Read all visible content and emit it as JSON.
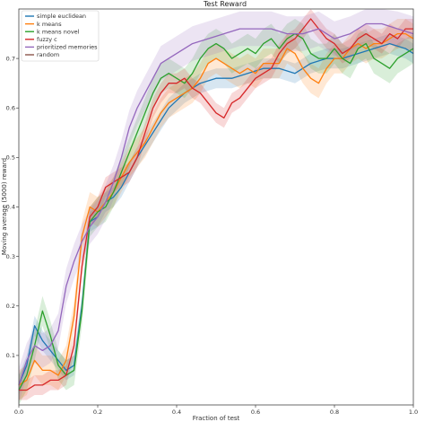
{
  "chart_data": {
    "type": "line",
    "title": "Test Reward",
    "xlabel": "Fraction of test",
    "ylabel": "Moving average (5000) reward",
    "xlim": [
      0.0,
      1.0
    ],
    "ylim": [
      0.0,
      0.8
    ],
    "xticks": [
      "0.0",
      "0.2",
      "0.4",
      "0.6",
      "0.8",
      "1.0"
    ],
    "yticks": [
      "0.1",
      "0.2",
      "0.3",
      "0.4",
      "0.5",
      "0.6",
      "0.7"
    ],
    "legend_position": "top-left",
    "grid": false,
    "series": [
      {
        "name": "simple euclidean",
        "color": "#1f77b4",
        "band": 0.02,
        "points": [
          [
            0.0,
            0.04
          ],
          [
            0.02,
            0.08
          ],
          [
            0.04,
            0.16
          ],
          [
            0.06,
            0.13
          ],
          [
            0.08,
            0.11
          ],
          [
            0.1,
            0.09
          ],
          [
            0.12,
            0.07
          ],
          [
            0.14,
            0.08
          ],
          [
            0.16,
            0.2
          ],
          [
            0.18,
            0.37
          ],
          [
            0.2,
            0.38
          ],
          [
            0.22,
            0.41
          ],
          [
            0.24,
            0.42
          ],
          [
            0.26,
            0.44
          ],
          [
            0.28,
            0.47
          ],
          [
            0.3,
            0.5
          ],
          [
            0.34,
            0.55
          ],
          [
            0.38,
            0.6
          ],
          [
            0.42,
            0.63
          ],
          [
            0.46,
            0.65
          ],
          [
            0.5,
            0.66
          ],
          [
            0.54,
            0.66
          ],
          [
            0.58,
            0.67
          ],
          [
            0.62,
            0.68
          ],
          [
            0.66,
            0.68
          ],
          [
            0.7,
            0.67
          ],
          [
            0.74,
            0.69
          ],
          [
            0.78,
            0.7
          ],
          [
            0.82,
            0.7
          ],
          [
            0.86,
            0.71
          ],
          [
            0.9,
            0.72
          ],
          [
            0.94,
            0.73
          ],
          [
            0.98,
            0.72
          ],
          [
            1.0,
            0.71
          ]
        ]
      },
      {
        "name": "k means",
        "color": "#ff7f0e",
        "band": 0.03,
        "points": [
          [
            0.0,
            0.04
          ],
          [
            0.02,
            0.05
          ],
          [
            0.04,
            0.09
          ],
          [
            0.06,
            0.07
          ],
          [
            0.08,
            0.07
          ],
          [
            0.1,
            0.06
          ],
          [
            0.12,
            0.09
          ],
          [
            0.14,
            0.18
          ],
          [
            0.16,
            0.34
          ],
          [
            0.18,
            0.4
          ],
          [
            0.2,
            0.39
          ],
          [
            0.22,
            0.41
          ],
          [
            0.24,
            0.43
          ],
          [
            0.26,
            0.46
          ],
          [
            0.28,
            0.49
          ],
          [
            0.3,
            0.51
          ],
          [
            0.32,
            0.53
          ],
          [
            0.34,
            0.56
          ],
          [
            0.36,
            0.59
          ],
          [
            0.38,
            0.61
          ],
          [
            0.4,
            0.62
          ],
          [
            0.42,
            0.63
          ],
          [
            0.44,
            0.64
          ],
          [
            0.46,
            0.66
          ],
          [
            0.48,
            0.69
          ],
          [
            0.5,
            0.7
          ],
          [
            0.52,
            0.69
          ],
          [
            0.54,
            0.68
          ],
          [
            0.56,
            0.67
          ],
          [
            0.58,
            0.68
          ],
          [
            0.6,
            0.67
          ],
          [
            0.62,
            0.69
          ],
          [
            0.64,
            0.69
          ],
          [
            0.66,
            0.69
          ],
          [
            0.68,
            0.72
          ],
          [
            0.7,
            0.71
          ],
          [
            0.72,
            0.68
          ],
          [
            0.74,
            0.66
          ],
          [
            0.76,
            0.65
          ],
          [
            0.78,
            0.68
          ],
          [
            0.8,
            0.7
          ],
          [
            0.82,
            0.7
          ],
          [
            0.84,
            0.72
          ],
          [
            0.86,
            0.73
          ],
          [
            0.88,
            0.72
          ],
          [
            0.9,
            0.73
          ],
          [
            0.92,
            0.73
          ],
          [
            0.94,
            0.74
          ],
          [
            0.96,
            0.75
          ],
          [
            0.98,
            0.75
          ],
          [
            1.0,
            0.74
          ]
        ]
      },
      {
        "name": "k means novel",
        "color": "#2ca02c",
        "band": 0.03,
        "points": [
          [
            0.0,
            0.03
          ],
          [
            0.02,
            0.06
          ],
          [
            0.04,
            0.12
          ],
          [
            0.06,
            0.19
          ],
          [
            0.08,
            0.14
          ],
          [
            0.1,
            0.08
          ],
          [
            0.12,
            0.06
          ],
          [
            0.14,
            0.07
          ],
          [
            0.16,
            0.19
          ],
          [
            0.18,
            0.37
          ],
          [
            0.2,
            0.39
          ],
          [
            0.22,
            0.4
          ],
          [
            0.24,
            0.43
          ],
          [
            0.26,
            0.47
          ],
          [
            0.28,
            0.51
          ],
          [
            0.3,
            0.55
          ],
          [
            0.32,
            0.59
          ],
          [
            0.34,
            0.63
          ],
          [
            0.36,
            0.66
          ],
          [
            0.38,
            0.67
          ],
          [
            0.4,
            0.66
          ],
          [
            0.42,
            0.65
          ],
          [
            0.44,
            0.67
          ],
          [
            0.46,
            0.7
          ],
          [
            0.48,
            0.72
          ],
          [
            0.5,
            0.73
          ],
          [
            0.52,
            0.72
          ],
          [
            0.54,
            0.7
          ],
          [
            0.56,
            0.71
          ],
          [
            0.58,
            0.72
          ],
          [
            0.6,
            0.71
          ],
          [
            0.62,
            0.73
          ],
          [
            0.64,
            0.74
          ],
          [
            0.66,
            0.72
          ],
          [
            0.68,
            0.74
          ],
          [
            0.7,
            0.75
          ],
          [
            0.72,
            0.74
          ],
          [
            0.74,
            0.71
          ],
          [
            0.76,
            0.7
          ],
          [
            0.78,
            0.7
          ],
          [
            0.8,
            0.72
          ],
          [
            0.82,
            0.7
          ],
          [
            0.84,
            0.69
          ],
          [
            0.86,
            0.72
          ],
          [
            0.88,
            0.73
          ],
          [
            0.9,
            0.7
          ],
          [
            0.92,
            0.69
          ],
          [
            0.94,
            0.68
          ],
          [
            0.96,
            0.7
          ],
          [
            0.98,
            0.71
          ],
          [
            1.0,
            0.72
          ]
        ]
      },
      {
        "name": "fuzzy c",
        "color": "#d62728",
        "band": 0.02,
        "points": [
          [
            0.0,
            0.03
          ],
          [
            0.02,
            0.03
          ],
          [
            0.04,
            0.04
          ],
          [
            0.06,
            0.04
          ],
          [
            0.08,
            0.05
          ],
          [
            0.1,
            0.05
          ],
          [
            0.12,
            0.06
          ],
          [
            0.14,
            0.12
          ],
          [
            0.16,
            0.28
          ],
          [
            0.18,
            0.38
          ],
          [
            0.2,
            0.4
          ],
          [
            0.22,
            0.44
          ],
          [
            0.24,
            0.45
          ],
          [
            0.26,
            0.46
          ],
          [
            0.28,
            0.47
          ],
          [
            0.3,
            0.5
          ],
          [
            0.32,
            0.55
          ],
          [
            0.34,
            0.6
          ],
          [
            0.36,
            0.63
          ],
          [
            0.38,
            0.65
          ],
          [
            0.4,
            0.65
          ],
          [
            0.42,
            0.66
          ],
          [
            0.44,
            0.64
          ],
          [
            0.46,
            0.63
          ],
          [
            0.48,
            0.61
          ],
          [
            0.5,
            0.59
          ],
          [
            0.52,
            0.58
          ],
          [
            0.54,
            0.61
          ],
          [
            0.56,
            0.62
          ],
          [
            0.58,
            0.64
          ],
          [
            0.6,
            0.66
          ],
          [
            0.62,
            0.67
          ],
          [
            0.64,
            0.68
          ],
          [
            0.66,
            0.71
          ],
          [
            0.68,
            0.73
          ],
          [
            0.7,
            0.74
          ],
          [
            0.72,
            0.76
          ],
          [
            0.74,
            0.78
          ],
          [
            0.76,
            0.76
          ],
          [
            0.78,
            0.74
          ],
          [
            0.8,
            0.73
          ],
          [
            0.82,
            0.71
          ],
          [
            0.84,
            0.72
          ],
          [
            0.86,
            0.74
          ],
          [
            0.88,
            0.75
          ],
          [
            0.9,
            0.74
          ],
          [
            0.92,
            0.73
          ],
          [
            0.94,
            0.75
          ],
          [
            0.96,
            0.74
          ],
          [
            0.98,
            0.76
          ],
          [
            1.0,
            0.76
          ]
        ]
      },
      {
        "name": "prioritized memories",
        "color": "#9467bd",
        "band": 0.035,
        "points": [
          [
            0.0,
            0.04
          ],
          [
            0.02,
            0.09
          ],
          [
            0.04,
            0.12
          ],
          [
            0.06,
            0.11
          ],
          [
            0.08,
            0.12
          ],
          [
            0.1,
            0.15
          ],
          [
            0.12,
            0.24
          ],
          [
            0.14,
            0.29
          ],
          [
            0.16,
            0.33
          ],
          [
            0.18,
            0.36
          ],
          [
            0.2,
            0.38
          ],
          [
            0.22,
            0.41
          ],
          [
            0.24,
            0.45
          ],
          [
            0.26,
            0.5
          ],
          [
            0.28,
            0.56
          ],
          [
            0.3,
            0.6
          ],
          [
            0.32,
            0.63
          ],
          [
            0.34,
            0.66
          ],
          [
            0.36,
            0.69
          ],
          [
            0.38,
            0.7
          ],
          [
            0.4,
            0.71
          ],
          [
            0.44,
            0.73
          ],
          [
            0.48,
            0.74
          ],
          [
            0.52,
            0.75
          ],
          [
            0.56,
            0.76
          ],
          [
            0.6,
            0.76
          ],
          [
            0.64,
            0.76
          ],
          [
            0.68,
            0.75
          ],
          [
            0.72,
            0.75
          ],
          [
            0.76,
            0.76
          ],
          [
            0.8,
            0.74
          ],
          [
            0.84,
            0.75
          ],
          [
            0.88,
            0.77
          ],
          [
            0.92,
            0.77
          ],
          [
            0.96,
            0.76
          ],
          [
            1.0,
            0.75
          ]
        ]
      },
      {
        "name": "random",
        "color": "#8c564b",
        "band": 0.0,
        "points": []
      }
    ]
  }
}
